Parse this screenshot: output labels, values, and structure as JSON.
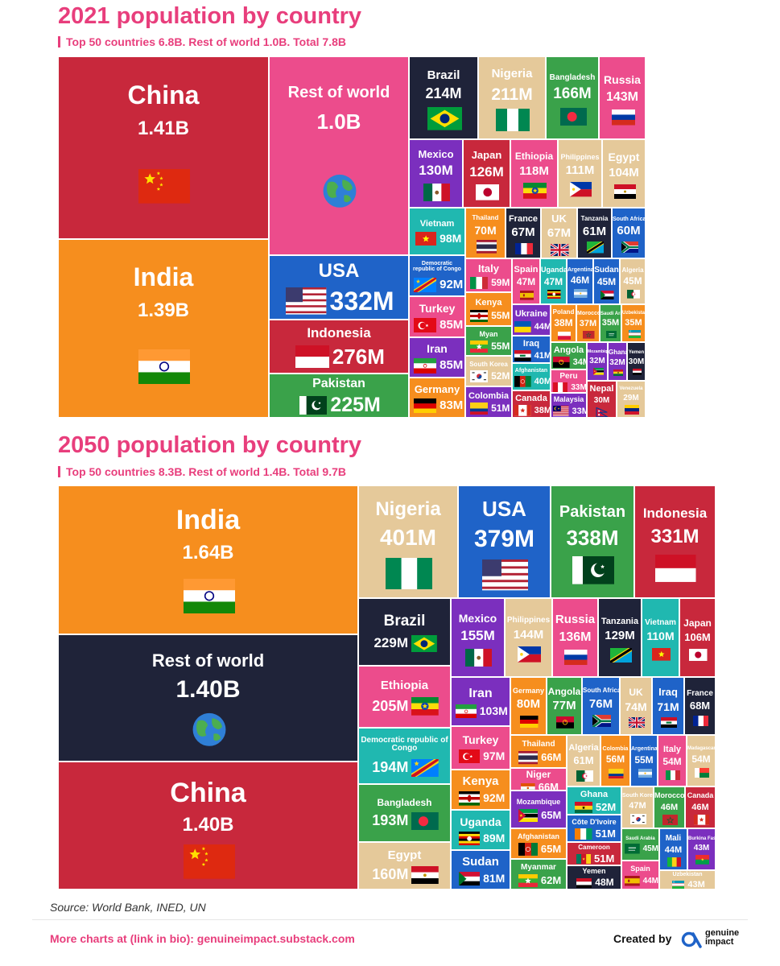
{
  "footer": {
    "source": "Source: World Bank, INED, UN",
    "more_charts": "More charts at (link in bio): genuineimpact.substack.com",
    "created_by": "Created by",
    "logo_line1": "genuine",
    "logo_line2": "impact"
  },
  "chart_data": [
    {
      "type": "treemap",
      "title": "2021 population by country",
      "subtitle": "Top 50 countries 6.8B. Rest of world 1.0B. Total 7.8B",
      "items": [
        {
          "name": "China",
          "value": 1410,
          "label": "1.41B",
          "color": "#c8283c",
          "flag": "china"
        },
        {
          "name": "India",
          "value": 1390,
          "label": "1.39B",
          "color": "#f68e1e",
          "flag": "india"
        },
        {
          "name": "Rest of world",
          "value": 1000,
          "label": "1.0B",
          "color": "#ec4c8c",
          "flag": "globe"
        },
        {
          "name": "USA",
          "value": 332,
          "label": "332M",
          "color": "#1f63c8",
          "flag": "usa"
        },
        {
          "name": "Indonesia",
          "value": 276,
          "label": "276M",
          "color": "#c8283c",
          "flag": "indonesia"
        },
        {
          "name": "Pakistan",
          "value": 225,
          "label": "225M",
          "color": "#3aa24a",
          "flag": "pakistan"
        },
        {
          "name": "Brazil",
          "value": 214,
          "label": "214M",
          "color": "#1f2339",
          "flag": "brazil"
        },
        {
          "name": "Nigeria",
          "value": 211,
          "label": "211M",
          "color": "#e5c99a",
          "flag": "nigeria"
        },
        {
          "name": "Bangladesh",
          "value": 166,
          "label": "166M",
          "color": "#3aa24a",
          "flag": "bangladesh"
        },
        {
          "name": "Russia",
          "value": 143,
          "label": "143M",
          "color": "#ec4c8c",
          "flag": "russia"
        },
        {
          "name": "Mexico",
          "value": 130,
          "label": "130M",
          "color": "#7b2fbe",
          "flag": "mexico"
        },
        {
          "name": "Japan",
          "value": 126,
          "label": "126M",
          "color": "#c8283c",
          "flag": "japan"
        },
        {
          "name": "Ethiopia",
          "value": 118,
          "label": "118M",
          "color": "#ec4c8c",
          "flag": "ethiopia"
        },
        {
          "name": "Philippines",
          "value": 111,
          "label": "111M",
          "color": "#e5c99a",
          "flag": "philippines"
        },
        {
          "name": "Egypt",
          "value": 104,
          "label": "104M",
          "color": "#e5c99a",
          "flag": "egypt"
        },
        {
          "name": "Vietnam",
          "value": 98,
          "label": "98M",
          "color": "#20b8b0",
          "flag": "vietnam"
        },
        {
          "name": "Democratic republic of Congo",
          "value": 92,
          "label": "92M",
          "color": "#1f63c8",
          "flag": "drc"
        },
        {
          "name": "Turkey",
          "value": 85,
          "label": "85M",
          "color": "#ec4c8c",
          "flag": "turkey"
        },
        {
          "name": "Iran",
          "value": 85,
          "label": "85M",
          "color": "#7b2fbe",
          "flag": "iran"
        },
        {
          "name": "Germany",
          "value": 83,
          "label": "83M",
          "color": "#f68e1e",
          "flag": "germany"
        },
        {
          "name": "Thailand",
          "value": 70,
          "label": "70M",
          "color": "#f68e1e",
          "flag": "thailand"
        },
        {
          "name": "France",
          "value": 67,
          "label": "67M",
          "color": "#1f2339",
          "flag": "france"
        },
        {
          "name": "UK",
          "value": 67,
          "label": "67M",
          "color": "#e5c99a",
          "flag": "uk"
        },
        {
          "name": "Tanzania",
          "value": 61,
          "label": "61M",
          "color": "#1f2339",
          "flag": "tanzania"
        },
        {
          "name": "South Africa",
          "value": 60,
          "label": "60M",
          "color": "#1f63c8",
          "flag": "southafrica"
        },
        {
          "name": "Italy",
          "value": 59,
          "label": "59M",
          "color": "#ec4c8c",
          "flag": "italy"
        },
        {
          "name": "Kenya",
          "value": 55,
          "label": "55M",
          "color": "#f68e1e",
          "flag": "kenya"
        },
        {
          "name": "Myan",
          "value": 55,
          "label": "55M",
          "color": "#3aa24a",
          "flag": "myanmar"
        },
        {
          "name": "South Korea",
          "value": 52,
          "label": "52M",
          "color": "#e5c99a",
          "flag": "southkorea"
        },
        {
          "name": "Colombia",
          "value": 51,
          "label": "51M",
          "color": "#7b2fbe",
          "flag": "colombia"
        },
        {
          "name": "Spain",
          "value": 47,
          "label": "47M",
          "color": "#ec4c8c",
          "flag": "spain"
        },
        {
          "name": "Uganda",
          "value": 47,
          "label": "47M",
          "color": "#20b8b0",
          "flag": "uganda"
        },
        {
          "name": "Argentina",
          "value": 46,
          "label": "46M",
          "color": "#1f63c8",
          "flag": "argentina"
        },
        {
          "name": "Sudan",
          "value": 45,
          "label": "45M",
          "color": "#1f63c8",
          "flag": "sudan"
        },
        {
          "name": "Algeria",
          "value": 45,
          "label": "45M",
          "color": "#e5c99a",
          "flag": "algeria"
        },
        {
          "name": "Ukraine",
          "value": 44,
          "label": "44M",
          "color": "#7b2fbe",
          "flag": "ukraine"
        },
        {
          "name": "Iraq",
          "value": 41,
          "label": "41M",
          "color": "#1f63c8",
          "flag": "iraq"
        },
        {
          "name": "Afghanistan",
          "value": 40,
          "label": "40M",
          "color": "#20b8b0",
          "flag": "afghanistan"
        },
        {
          "name": "Canada",
          "value": 38,
          "label": "38M",
          "color": "#c8283c",
          "flag": "canada"
        },
        {
          "name": "Poland",
          "value": 38,
          "label": "38M",
          "color": "#f68e1e",
          "flag": "poland"
        },
        {
          "name": "Morocco",
          "value": 37,
          "label": "37M",
          "color": "#f68e1e",
          "flag": "morocco"
        },
        {
          "name": "Saudi Arabia",
          "value": 35,
          "label": "35M",
          "color": "#3aa24a",
          "flag": "saudi"
        },
        {
          "name": "Uzbekistan",
          "value": 35,
          "label": "35M",
          "color": "#f68e1e",
          "flag": "uzbekistan"
        },
        {
          "name": "Angola",
          "value": 34,
          "label": "34M",
          "color": "#3aa24a",
          "flag": "angola"
        },
        {
          "name": "Peru",
          "value": 33,
          "label": "33M",
          "color": "#ec4c8c",
          "flag": "peru"
        },
        {
          "name": "Malaysia",
          "value": 33,
          "label": "33M",
          "color": "#7b2fbe",
          "flag": "malaysia"
        },
        {
          "name": "Mozambique",
          "value": 32,
          "label": "32M",
          "color": "#7b2fbe",
          "flag": "mozambique"
        },
        {
          "name": "Ghana",
          "value": 32,
          "label": "32M",
          "color": "#7b2fbe",
          "flag": "ghana"
        },
        {
          "name": "Yemen",
          "value": 30,
          "label": "30M",
          "color": "#1f2339",
          "flag": "yemen"
        },
        {
          "name": "Nepal",
          "value": 30,
          "label": "30M",
          "color": "#c8283c",
          "flag": "nepal"
        },
        {
          "name": "Venezuela",
          "value": 29,
          "label": "29M",
          "color": "#e5c99a",
          "flag": "venezuela"
        }
      ]
    },
    {
      "type": "treemap",
      "title": "2050 population by country",
      "subtitle": "Top 50 countries 8.3B. Rest of world 1.4B. Total 9.7B",
      "items": [
        {
          "name": "India",
          "value": 1640,
          "label": "1.64B",
          "color": "#f68e1e",
          "flag": "india"
        },
        {
          "name": "Rest of world",
          "value": 1400,
          "label": "1.40B",
          "color": "#1f2339",
          "flag": "globe"
        },
        {
          "name": "China",
          "value": 1400,
          "label": "1.40B",
          "color": "#c8283c",
          "flag": "china"
        },
        {
          "name": "Nigeria",
          "value": 401,
          "label": "401M",
          "color": "#e5c99a",
          "flag": "nigeria"
        },
        {
          "name": "USA",
          "value": 379,
          "label": "379M",
          "color": "#1f63c8",
          "flag": "usa"
        },
        {
          "name": "Pakistan",
          "value": 338,
          "label": "338M",
          "color": "#3aa24a",
          "flag": "pakistan"
        },
        {
          "name": "Indonesia",
          "value": 331,
          "label": "331M",
          "color": "#c8283c",
          "flag": "indonesia"
        },
        {
          "name": "Brazil",
          "value": 229,
          "label": "229M",
          "color": "#1f2339",
          "flag": "brazil"
        },
        {
          "name": "Ethiopia",
          "value": 205,
          "label": "205M",
          "color": "#ec4c8c",
          "flag": "ethiopia"
        },
        {
          "name": "Democratic republic of Congo",
          "value": 194,
          "label": "194M",
          "color": "#20b8b0",
          "flag": "drc"
        },
        {
          "name": "Bangladesh",
          "value": 193,
          "label": "193M",
          "color": "#3aa24a",
          "flag": "bangladesh"
        },
        {
          "name": "Egypt",
          "value": 160,
          "label": "160M",
          "color": "#e5c99a",
          "flag": "egypt"
        },
        {
          "name": "Mexico",
          "value": 155,
          "label": "155M",
          "color": "#7b2fbe",
          "flag": "mexico"
        },
        {
          "name": "Philippines",
          "value": 144,
          "label": "144M",
          "color": "#e5c99a",
          "flag": "philippines"
        },
        {
          "name": "Russia",
          "value": 136,
          "label": "136M",
          "color": "#ec4c8c",
          "flag": "russia"
        },
        {
          "name": "Tanzania",
          "value": 129,
          "label": "129M",
          "color": "#1f2339",
          "flag": "tanzania"
        },
        {
          "name": "Vietnam",
          "value": 110,
          "label": "110M",
          "color": "#20b8b0",
          "flag": "vietnam"
        },
        {
          "name": "Japan",
          "value": 106,
          "label": "106M",
          "color": "#c8283c",
          "flag": "japan"
        },
        {
          "name": "Iran",
          "value": 103,
          "label": "103M",
          "color": "#7b2fbe",
          "flag": "iran"
        },
        {
          "name": "Turkey",
          "value": 97,
          "label": "97M",
          "color": "#ec4c8c",
          "flag": "turkey"
        },
        {
          "name": "Kenya",
          "value": 92,
          "label": "92M",
          "color": "#f68e1e",
          "flag": "kenya"
        },
        {
          "name": "Uganda",
          "value": 89,
          "label": "89M",
          "color": "#20b8b0",
          "flag": "uganda"
        },
        {
          "name": "Sudan",
          "value": 81,
          "label": "81M",
          "color": "#1f63c8",
          "flag": "sudan"
        },
        {
          "name": "Germany",
          "value": 80,
          "label": "80M",
          "color": "#f68e1e",
          "flag": "germany"
        },
        {
          "name": "Angola",
          "value": 77,
          "label": "77M",
          "color": "#3aa24a",
          "flag": "angola"
        },
        {
          "name": "South Africa",
          "value": 76,
          "label": "76M",
          "color": "#1f63c8",
          "flag": "southafrica"
        },
        {
          "name": "UK",
          "value": 74,
          "label": "74M",
          "color": "#e5c99a",
          "flag": "uk"
        },
        {
          "name": "Iraq",
          "value": 71,
          "label": "71M",
          "color": "#1f63c8",
          "flag": "iraq"
        },
        {
          "name": "France",
          "value": 68,
          "label": "68M",
          "color": "#1f2339",
          "flag": "france"
        },
        {
          "name": "Thailand",
          "value": 66,
          "label": "66M",
          "color": "#f68e1e",
          "flag": "thailand"
        },
        {
          "name": "Niger",
          "value": 66,
          "label": "66M",
          "color": "#ec4c8c",
          "flag": "niger"
        },
        {
          "name": "Mozambique",
          "value": 65,
          "label": "65M",
          "color": "#7b2fbe",
          "flag": "mozambique"
        },
        {
          "name": "Afghanistan",
          "value": 65,
          "label": "65M",
          "color": "#f68e1e",
          "flag": "afghanistan"
        },
        {
          "name": "Myanmar",
          "value": 62,
          "label": "62M",
          "color": "#3aa24a",
          "flag": "myanmar"
        },
        {
          "name": "Algeria",
          "value": 61,
          "label": "61M",
          "color": "#e5c99a",
          "flag": "algeria"
        },
        {
          "name": "Colombia",
          "value": 56,
          "label": "56M",
          "color": "#f68e1e",
          "flag": "colombia"
        },
        {
          "name": "Argentina",
          "value": 55,
          "label": "55M",
          "color": "#1f63c8",
          "flag": "argentina"
        },
        {
          "name": "Italy",
          "value": 54,
          "label": "54M",
          "color": "#ec4c8c",
          "flag": "italy"
        },
        {
          "name": "Madagascar",
          "value": 54,
          "label": "54M",
          "color": "#e5c99a",
          "flag": "madagascar"
        },
        {
          "name": "Ghana",
          "value": 52,
          "label": "52M",
          "color": "#20b8b0",
          "flag": "ghana"
        },
        {
          "name": "Côte D'Ivoire",
          "value": 51,
          "label": "51M",
          "color": "#1f63c8",
          "flag": "ivorycoast"
        },
        {
          "name": "Cameroon",
          "value": 51,
          "label": "51M",
          "color": "#c8283c",
          "flag": "cameroon"
        },
        {
          "name": "Yemen",
          "value": 48,
          "label": "48M",
          "color": "#1f2339",
          "flag": "yemen"
        },
        {
          "name": "South Korea",
          "value": 47,
          "label": "47M",
          "color": "#e5c99a",
          "flag": "southkorea"
        },
        {
          "name": "Morocco",
          "value": 46,
          "label": "46M",
          "color": "#3aa24a",
          "flag": "morocco"
        },
        {
          "name": "Canada",
          "value": 46,
          "label": "46M",
          "color": "#c8283c",
          "flag": "canada"
        },
        {
          "name": "Saudi Arabia",
          "value": 45,
          "label": "45M",
          "color": "#3aa24a",
          "flag": "saudi"
        },
        {
          "name": "Mali",
          "value": 44,
          "label": "44M",
          "color": "#1f63c8",
          "flag": "mali"
        },
        {
          "name": "Spain",
          "value": 44,
          "label": "44M",
          "color": "#ec4c8c",
          "flag": "spain"
        },
        {
          "name": "Burkina Faso",
          "value": 43,
          "label": "43M",
          "color": "#7b2fbe",
          "flag": "burkina"
        },
        {
          "name": "Uzbekistan",
          "value": 43,
          "label": "43M",
          "color": "#e5c99a",
          "flag": "uzbekistan"
        }
      ]
    }
  ]
}
